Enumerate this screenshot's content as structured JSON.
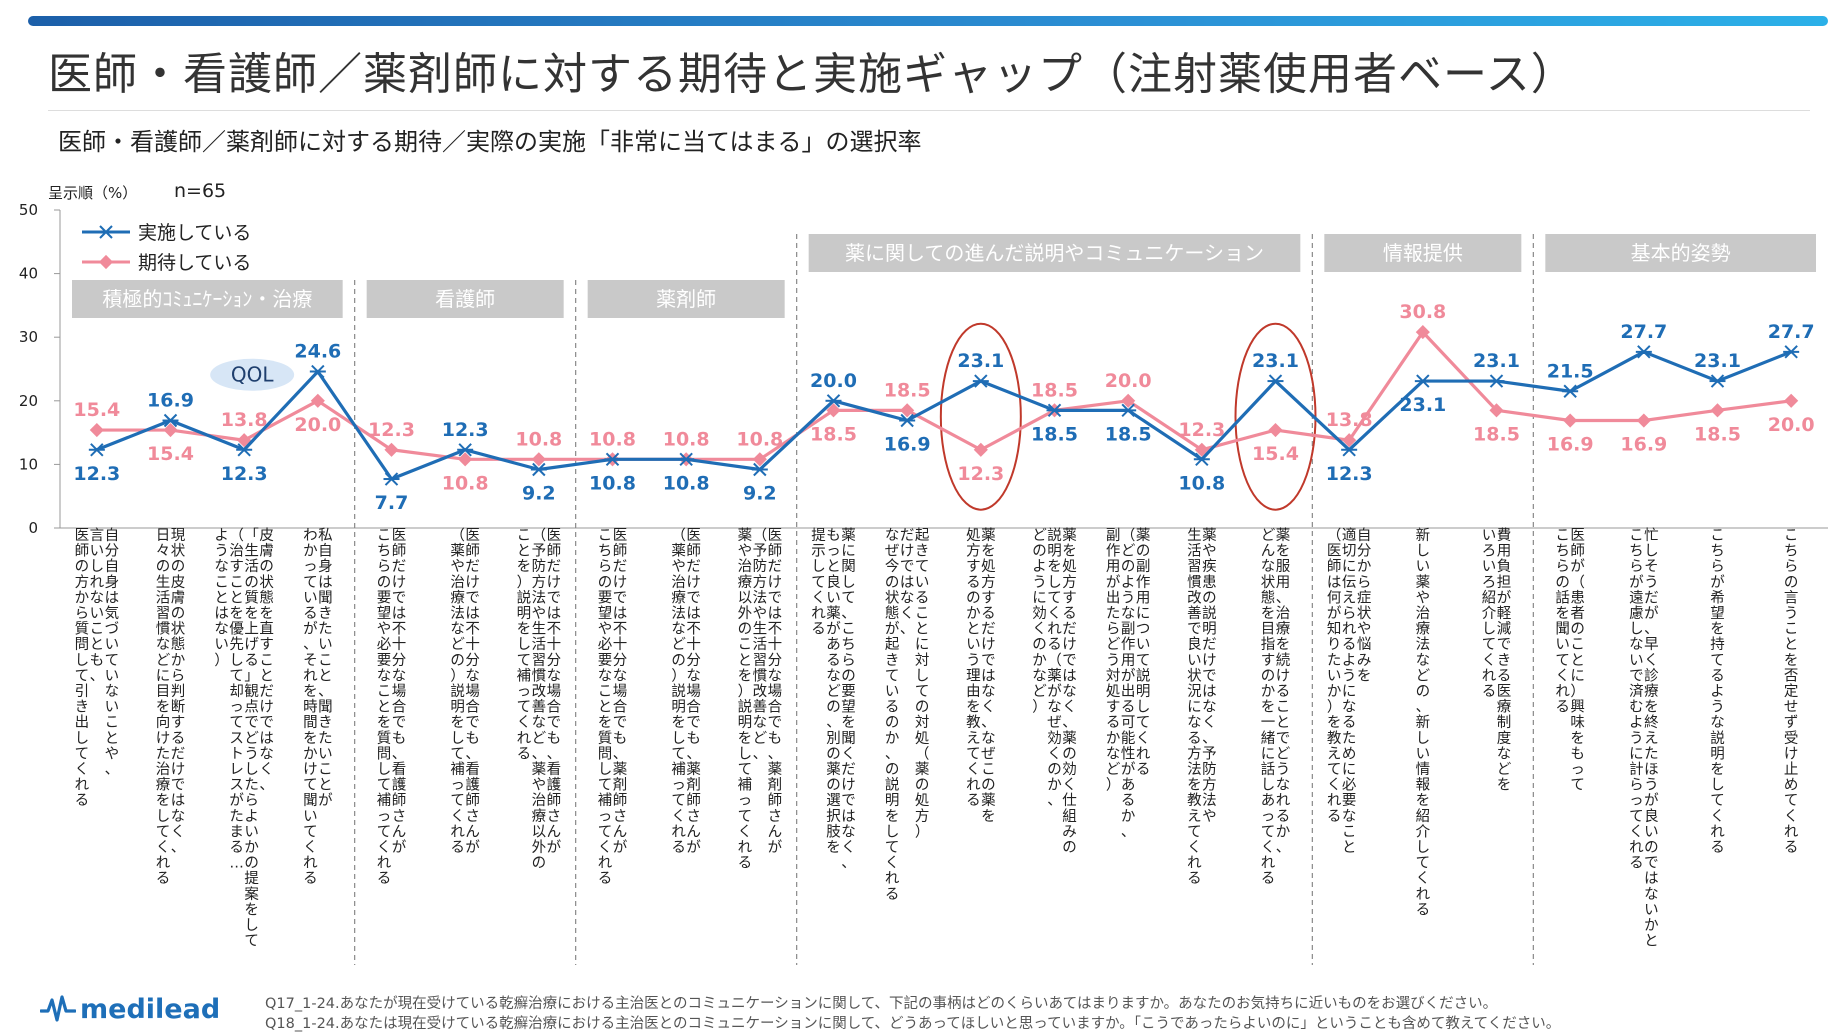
{
  "title": "医師・看護師／薬剤師に対する期待と実施ギャップ（注射薬使用者ベース）",
  "subtitle": "医師・看護師／薬剤師に対する期待／実際の実施「非常に当てはまる」の選択率",
  "sort_note": "呈示順（%）",
  "n_label": "n=65",
  "colors": {
    "implemented": "#1f6db5",
    "expected": "#f08a9a",
    "category_bg": "#c9c9c9",
    "highlight_ellipse": "#c0392b",
    "qol_bg": "#d7e6f6"
  },
  "qol_label": "QOL",
  "footnotes": [
    "Q17_1-24.あなたが現在受けている乾癬治療における主治医とのコミュニケーションに関して、下記の事柄はどのくらいあてはまりますか。あなたのお気持ちに近いものをお選びください。",
    "Q18_1-24.あなたは現在受けている乾癬治療における主治医とのコミュニケーションに関して、どうあってほしいと思っていますか。「こうであったらよいのに」ということも含めて教えてください。"
  ],
  "logo_text": "medilead",
  "categories_groups": [
    {
      "label": "積極的ｺﾐｭﾆｹｰｼｮﾝ・治療",
      "from": 0,
      "to": 3
    },
    {
      "label": "看護師",
      "from": 4,
      "to": 6
    },
    {
      "label": "薬剤師",
      "from": 7,
      "to": 9
    },
    {
      "label": "薬に関しての進んだ説明やコミュニケーション",
      "from": 10,
      "to": 16
    },
    {
      "label": "情報提供",
      "from": 17,
      "to": 19
    },
    {
      "label": "基本的姿勢",
      "from": 20,
      "to": 23
    }
  ],
  "chart_data": {
    "type": "line",
    "ylim": [
      0,
      50
    ],
    "yticks": [
      0,
      10,
      20,
      30,
      40,
      50
    ],
    "legend_position": "top-left",
    "categories": [
      "自分自身は気づいていないことや、言いしれないことも、医師の方から質問して引き出してくれる",
      "現状の皮膚の状態から判断するだけではなく、日々の生活習慣などに目を向けた治療をしてくれる",
      "皮膚の状態を直すことだけではなく、「生活の質を上げる」観点でどうしたらよいかの提案をしてくれる（治すことを優先して却ってストレスがたまる…ようなことはない）",
      "私自身は聞きたいこと、わかっているが、それを時間をかけて聞いてくれる",
      "医師だけでは不十分な場合でも、看護師さんがこちらの要望や必要なことを質問して補ってくれる",
      "医師だけでは不十分な場合でも、看護師さんが（薬や治療法などの）説明をして補ってくれる",
      "医師だけでは不十分な場合でも、看護師さんが（予防方法や生活習慣改善など、薬や治療以外のこと）説明をして補ってくれる",
      "医師だけでは不十分な場合でも、薬剤師さんがこちらの要望や必要なことを質問して補ってくれる",
      "医師だけでは不十分な場合でも、薬剤師さんが（薬や治療法などの）説明をして補ってくれる",
      "医師だけでは不十分な場合でも、薬剤師さんが（予防方法や生活習慣改善など、薬や治療以外のこと）説明をして補ってくれる",
      "薬に関して、こちらの要望を聞くだけではなく、もっと良い薬があるなどの、別の薬の選択肢を提示してくれる",
      "起きていることに対しての対処（薬の処方）だけではなく、なぜ今の状態が起きているのか、の説明をしてくれる",
      "薬を処方するだけではなく、なぜこの薬を処方するのかという理由を教えてくれる",
      "薬を処方するだけではなく、薬の効く仕組みの説明をしてくれる（薬がなぜ効くのか、どのように効くのかなど）",
      "薬の副作用について説明してくれる（どのような副作用が出る可能性があるか、副作用が出たらどう対処するかなど）",
      "薬や疾患の説明だけではなく、予防方法や生活習慣改善で良い状況になる方法を教えてくれる",
      "薬を服用、治療を続けることでどうなれるか、どんな状態を目指すのかを一緒に話しあってくれる",
      "自分から症状や悩みを適切に伝えられるようになるために必要なこと（医師は何が知りたいか）を教えてくれる",
      "新しい薬や治療法などの、新しい情報を紹介してくれる",
      "費用負担が軽減できる医療制度などをいろいろ紹介してくれる",
      "医師が（患者のことに）興味をもってこちらの話を聞いてくれる",
      "忙しそうだが、早く診療を終えたほうが良いのではないかとこちらが遠慮しないで済むように計らってくれる",
      "こちらが希望を持てるような説明をしてくれる",
      "こちらの言うことを否定せず受け止めてくれる"
    ],
    "category_text_lines": [
      [
        "医師の方から質問して引き出してくれる",
        "言いしれないことも、",
        "自分自身は気づいていないことや、"
      ],
      [
        "日々の生活習慣などに目を向けた治療をしてくれる",
        "現状の皮膚の状態から判断するだけではなく、"
      ],
      [
        "ようなことはない）",
        "（治すことを優先して却ってストレスがたまる…",
        "「生活の質を上げる」観点でどうしたらよいかの提案をしてくれる",
        "皮膚の状態を直すことだけではなく、"
      ],
      [
        "わかっているが、それを時間をかけて聞いてくれる",
        "私自身は聞きたいこと、聞きたいことが"
      ],
      [
        "こちらの要望や必要なことを質問して補ってくれる",
        "医師だけでは不十分な場合でも、看護師さんが"
      ],
      [
        "（薬や治療法などの）説明をして補ってくれる",
        "医師だけでは不十分な場合でも、看護師さんが"
      ],
      [
        "ことを）説明をして補ってくれる",
        "（予防方法や生活習慣改善など、薬や治療以外の",
        "医師だけでは不十分な場合でも、看護師さんが"
      ],
      [
        "こちらの要望や必要なことを質問して補ってくれる",
        "医師だけでは不十分な場合でも、薬剤師さんが"
      ],
      [
        "（薬や治療法などの）説明をして補ってくれる",
        "医師だけでは不十分な場合でも、薬剤師さんが"
      ],
      [
        "薬や治療以外のことを）説明をして補ってくれる",
        "（予防方法や生活習慣改善など、",
        "医師だけでは不十分な場合でも、薬剤師さんが"
      ],
      [
        "提示してくれる",
        "もっと良い薬があるなどの、別の薬の選択肢を",
        "薬に関して、こちらの要望を聞くだけではなく、"
      ],
      [
        "なぜ今の状態が起きているのか、の説明をしてくれる",
        "だけではなく、",
        "起きていることに対しての対処（薬の処方）"
      ],
      [
        "処方するのかという理由を教えてくれる",
        "薬を処方するだけではなく、なぜこの薬を"
      ],
      [
        "どのように効くのかなど）",
        "説明をしてくれる（薬がなぜ効くのか、",
        "薬を処方するだけではなく、薬の効く仕組みの"
      ],
      [
        "副作用が出たらどう対処するかなど）",
        "（どのような副作用が出る可能性があるか、",
        "薬の副作用について説明してくれる"
      ],
      [
        "生活習慣改善で良い状況になる方法を教えてくれる",
        "薬や疾患の説明だけではなく、予防方法や"
      ],
      [
        "どんな状態を目指すのかを一緒に話しあってくれる",
        "薬を服用、治療を続けることでどうなれるか、"
      ],
      [
        "（医師は何が知りたいか）を教えてくれる",
        "適切に伝えられるようになるために必要なこと",
        "自分から症状や悩みを"
      ],
      [
        "新しい薬や治療法などの、新しい情報を紹介してくれる"
      ],
      [
        "いろいろ紹介してくれる",
        "費用負担が軽減できる医療制度などを"
      ],
      [
        "こちらの話を聞いてくれる",
        "医師が（患者のことに）興味をもって"
      ],
      [
        "こちらが遠慮しないで済むように計らってくれる",
        "忙しそうだが、早く診療を終えたほうが良いのではないかと"
      ],
      [
        "こちらが希望を持てるような説明をしてくれる"
      ],
      [
        "こちらの言うことを否定せず受け止めてくれる"
      ]
    ],
    "series": [
      {
        "name": "実施している",
        "values": [
          12.3,
          16.9,
          12.3,
          24.6,
          7.7,
          12.3,
          9.2,
          10.8,
          10.8,
          9.2,
          20.0,
          16.9,
          23.1,
          18.5,
          18.5,
          10.8,
          23.1,
          12.3,
          23.1,
          23.1,
          21.5,
          27.7,
          23.1,
          27.7
        ]
      },
      {
        "name": "期待している",
        "values": [
          15.4,
          15.4,
          13.8,
          20.0,
          12.3,
          10.8,
          10.8,
          10.8,
          10.8,
          10.8,
          18.5,
          18.5,
          12.3,
          18.5,
          20.0,
          12.3,
          15.4,
          13.8,
          30.8,
          18.5,
          16.9,
          16.9,
          18.5,
          20.0
        ]
      }
    ],
    "highlighted_indices": [
      12,
      16
    ]
  }
}
